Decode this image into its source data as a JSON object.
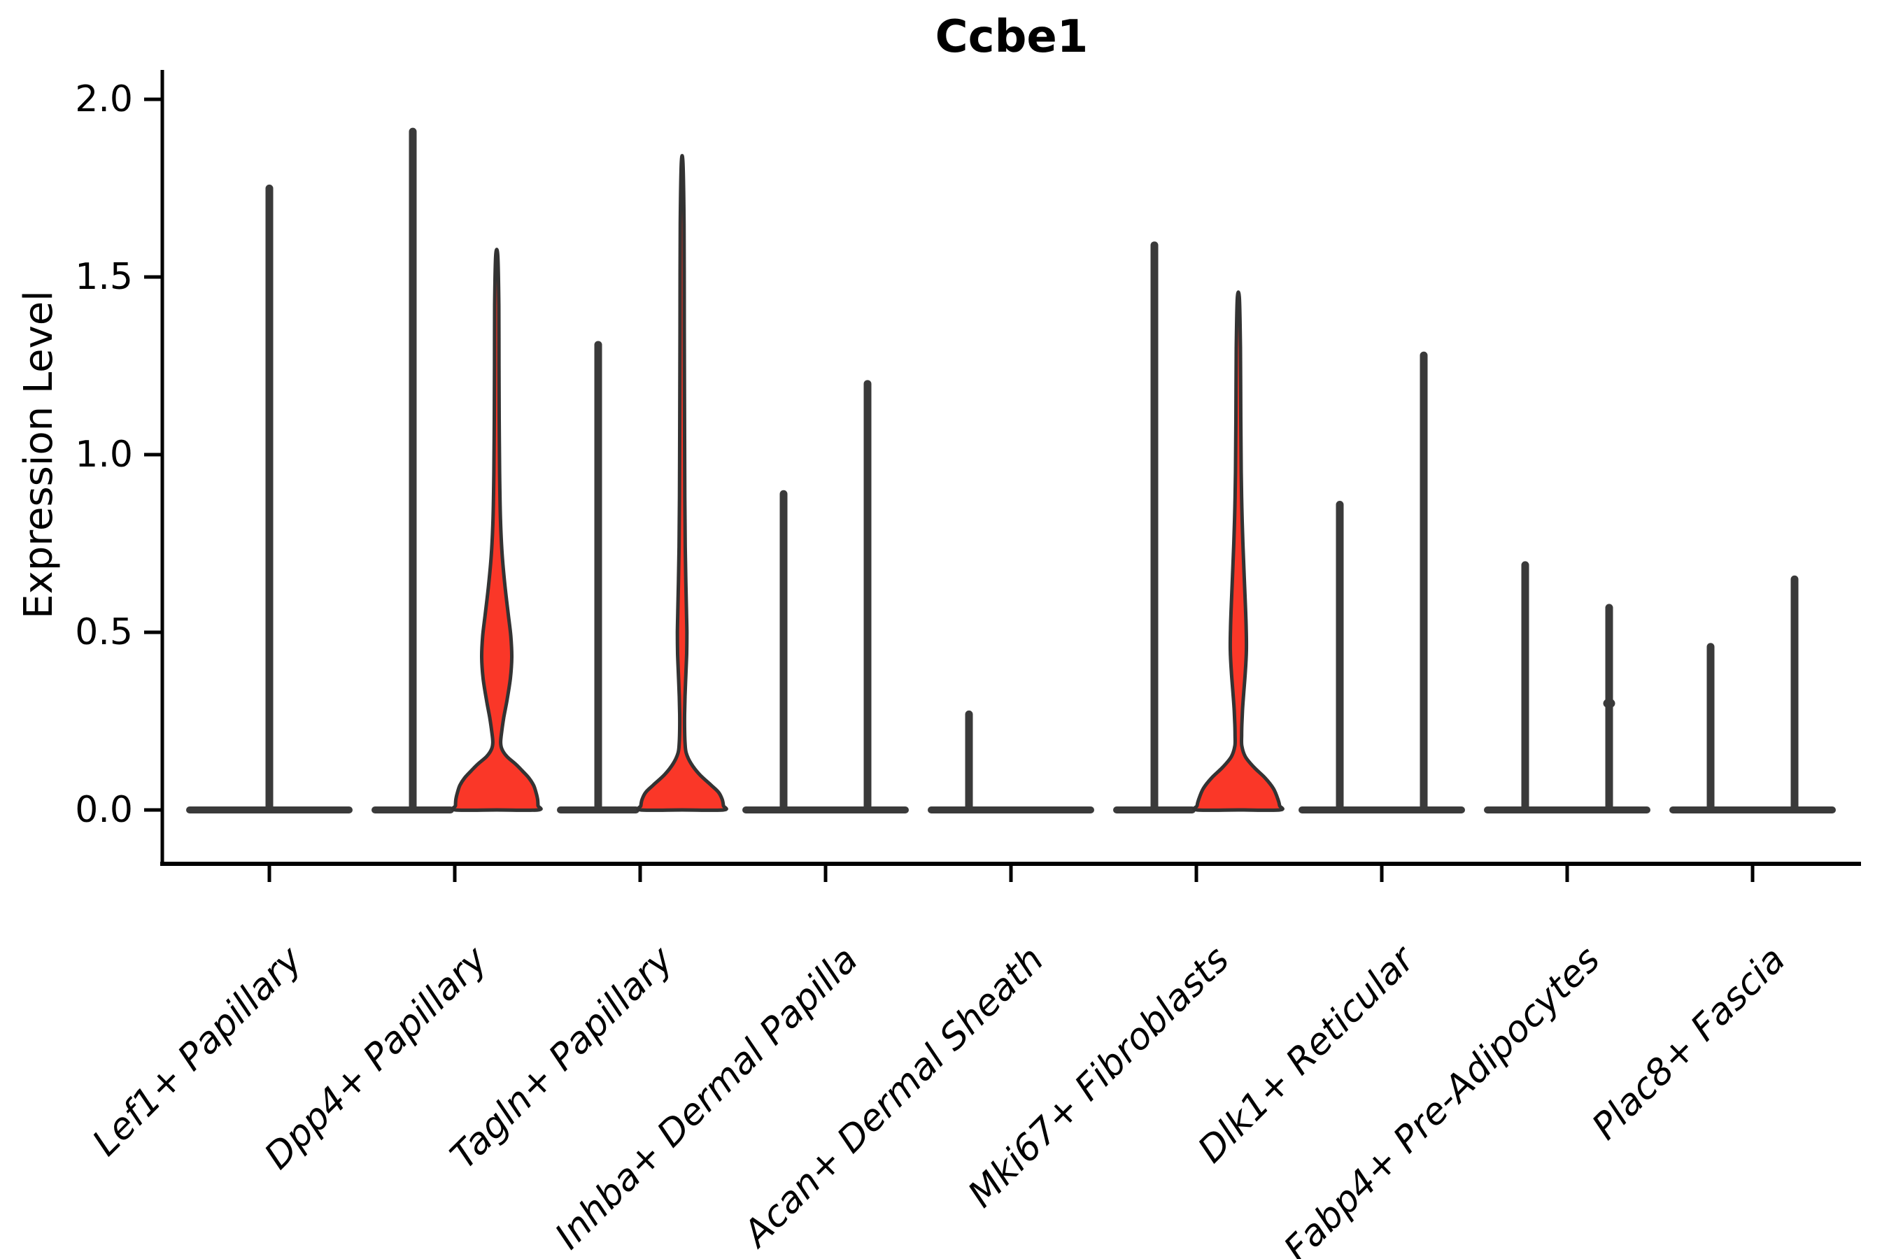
{
  "chart_data": {
    "type": "violin",
    "title": "Ccbe1",
    "ylabel": "Expression Level",
    "ylim": [
      0,
      2.0
    ],
    "yticks": [
      "0.0",
      "0.5",
      "1.0",
      "1.5",
      "2.0"
    ],
    "grid": false,
    "legend": null,
    "x_tick_style": "italic, rotated 45deg, right-anchored",
    "categories": [
      "Lef1+ Papillary",
      "Dpp4+ Papillary",
      "Tagln+ Papillary",
      "Inhba+ Dermal Papilla",
      "Acan+ Dermal Sheath",
      "Mki67+ Fibroblasts",
      "Dlk1+ Reticular",
      "Fabp4+ Pre-Adipocytes",
      "Plac8+ Fascia"
    ],
    "violins": [
      {
        "category": "Lef1+ Papillary",
        "items": [
          {
            "pos": "center",
            "span": "full",
            "kind": "spike",
            "max": 1.76
          }
        ]
      },
      {
        "category": "Dpp4+ Papillary",
        "items": [
          {
            "pos": "left",
            "kind": "spike",
            "max": 1.92
          },
          {
            "pos": "right",
            "kind": "filled",
            "max": 1.56,
            "profile": [
              [
                1.56,
                0.025
              ],
              [
                1.42,
                0.05
              ],
              [
                1.25,
                0.055
              ],
              [
                1.1,
                0.06
              ],
              [
                0.95,
                0.07
              ],
              [
                0.82,
                0.09
              ],
              [
                0.72,
                0.13
              ],
              [
                0.63,
                0.2
              ],
              [
                0.55,
                0.28
              ],
              [
                0.49,
                0.34
              ],
              [
                0.43,
                0.365
              ],
              [
                0.37,
                0.33
              ],
              [
                0.31,
                0.25
              ],
              [
                0.26,
                0.17
              ],
              [
                0.22,
                0.12
              ],
              [
                0.19,
                0.095
              ],
              [
                0.17,
                0.13
              ],
              [
                0.15,
                0.25
              ],
              [
                0.13,
                0.45
              ],
              [
                0.11,
                0.62
              ],
              [
                0.09,
                0.78
              ],
              [
                0.07,
                0.89
              ],
              [
                0.05,
                0.95
              ],
              [
                0.03,
                0.99
              ],
              [
                0.012,
                1.0
              ],
              [
                0,
                1.0
              ]
            ]
          }
        ]
      },
      {
        "category": "Tagln+ Papillary",
        "items": [
          {
            "pos": "left",
            "kind": "spike",
            "max": 1.32
          },
          {
            "pos": "right",
            "kind": "filled",
            "max": 1.82,
            "profile": [
              [
                1.82,
                0.02
              ],
              [
                1.65,
                0.045
              ],
              [
                1.45,
                0.05
              ],
              [
                1.25,
                0.055
              ],
              [
                1.05,
                0.06
              ],
              [
                0.88,
                0.065
              ],
              [
                0.74,
                0.075
              ],
              [
                0.64,
                0.09
              ],
              [
                0.56,
                0.105
              ],
              [
                0.5,
                0.115
              ],
              [
                0.44,
                0.11
              ],
              [
                0.38,
                0.09
              ],
              [
                0.32,
                0.07
              ],
              [
                0.27,
                0.06
              ],
              [
                0.23,
                0.06
              ],
              [
                0.19,
                0.07
              ],
              [
                0.16,
                0.1
              ],
              [
                0.13,
                0.22
              ],
              [
                0.1,
                0.42
              ],
              [
                0.07,
                0.7
              ],
              [
                0.05,
                0.88
              ],
              [
                0.03,
                0.97
              ],
              [
                0.012,
                1.0
              ],
              [
                0,
                1.0
              ]
            ]
          }
        ]
      },
      {
        "category": "Inhba+ Dermal Papilla",
        "items": [
          {
            "pos": "left",
            "kind": "spike",
            "max": 0.9
          },
          {
            "pos": "right",
            "kind": "spike",
            "max": 1.21
          }
        ]
      },
      {
        "category": "Acan+ Dermal Sheath",
        "items": [
          {
            "pos": "left",
            "kind": "spike",
            "max": 0.28
          },
          {
            "pos": "right",
            "kind": "flat",
            "max": 0.0
          }
        ]
      },
      {
        "category": "Mki67+ Fibroblasts",
        "items": [
          {
            "pos": "left",
            "kind": "spike",
            "max": 1.6
          },
          {
            "pos": "right",
            "kind": "filled",
            "max": 1.44,
            "profile": [
              [
                1.44,
                0.025
              ],
              [
                1.3,
                0.05
              ],
              [
                1.1,
                0.06
              ],
              [
                0.95,
                0.07
              ],
              [
                0.85,
                0.085
              ],
              [
                0.75,
                0.11
              ],
              [
                0.66,
                0.14
              ],
              [
                0.58,
                0.17
              ],
              [
                0.51,
                0.19
              ],
              [
                0.45,
                0.195
              ],
              [
                0.39,
                0.17
              ],
              [
                0.33,
                0.13
              ],
              [
                0.28,
                0.1
              ],
              [
                0.24,
                0.085
              ],
              [
                0.21,
                0.08
              ],
              [
                0.18,
                0.085
              ],
              [
                0.15,
                0.17
              ],
              [
                0.12,
                0.38
              ],
              [
                0.09,
                0.65
              ],
              [
                0.06,
                0.85
              ],
              [
                0.03,
                0.96
              ],
              [
                0.012,
                1.0
              ],
              [
                0,
                1.0
              ]
            ]
          }
        ]
      },
      {
        "category": "Dlk1+ Reticular",
        "items": [
          {
            "pos": "left",
            "kind": "spike",
            "max": 0.87
          },
          {
            "pos": "right",
            "kind": "spike",
            "max": 1.29
          }
        ]
      },
      {
        "category": "Fabp4+ Pre-Adipocytes",
        "items": [
          {
            "pos": "left",
            "kind": "spike",
            "max": 0.7
          },
          {
            "pos": "right",
            "kind": "spike",
            "max": 0.58,
            "bump": 0.3
          }
        ]
      },
      {
        "category": "Plac8+ Fascia",
        "items": [
          {
            "pos": "left",
            "kind": "spike",
            "max": 0.47
          },
          {
            "pos": "right",
            "kind": "spike",
            "max": 0.66
          }
        ]
      }
    ],
    "colors": {
      "violin_fill": "#fa3728",
      "violin_outline": "#333333",
      "spike_ink": "#3a3a3a",
      "axis": "#000000",
      "background": "#ffffff"
    }
  }
}
